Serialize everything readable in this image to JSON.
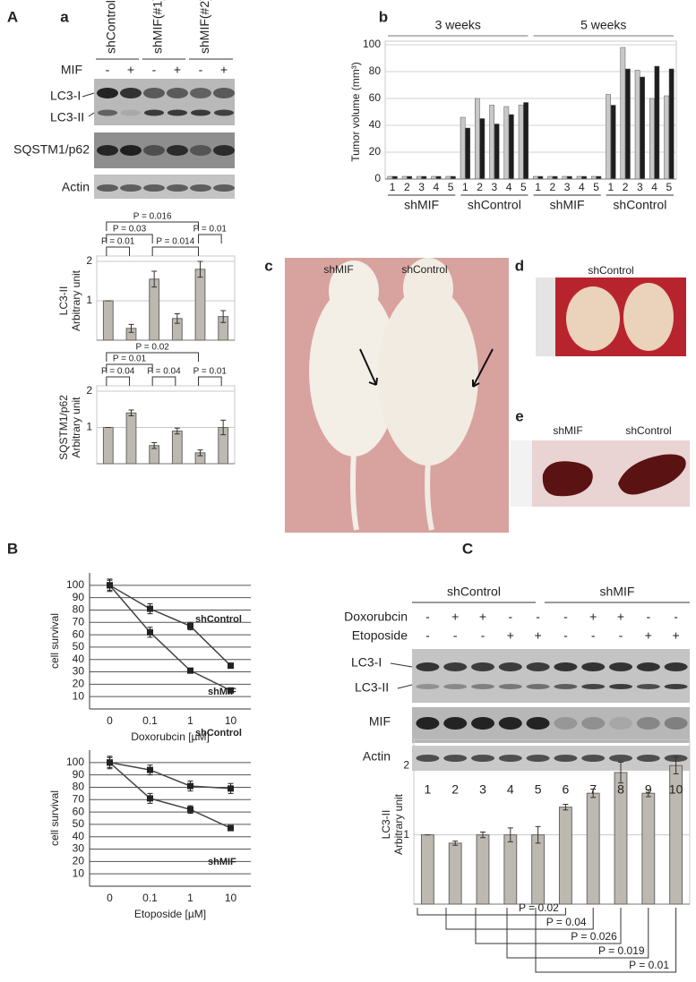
{
  "panel_labels": {
    "A": "A",
    "a": "a",
    "b": "b",
    "c": "c",
    "d": "d",
    "e": "e",
    "B": "B",
    "C": "C"
  },
  "blot_a": {
    "groups": [
      "shControl",
      "shMIF(#1)",
      "shMIF(#2)"
    ],
    "treatment": "MIF",
    "signs": [
      "-",
      "+",
      "-",
      "+",
      "-",
      "+"
    ],
    "rows": [
      "LC3-I",
      "LC3-II",
      "SQSTM1/p62",
      "Actin"
    ]
  },
  "photo_c": {
    "labels": [
      "shMIF",
      "shControl"
    ]
  },
  "photo_d": {
    "label": "shControl"
  },
  "photo_e": {
    "labels": [
      "shMIF",
      "shControl"
    ]
  },
  "blot_C": {
    "groups": [
      "shControl",
      "shMIF"
    ],
    "treatments": [
      {
        "name": "Doxorubcin",
        "signs": [
          "-",
          "+",
          "+",
          "-",
          "-",
          "-",
          "+",
          "+",
          "-",
          "-"
        ]
      },
      {
        "name": "Etoposide",
        "signs": [
          "-",
          "-",
          "-",
          "+",
          "+",
          "-",
          "-",
          "-",
          "+",
          "+"
        ]
      }
    ],
    "rows": [
      "LC3-I",
      "LC3-II",
      "MIF",
      "Actin"
    ]
  },
  "chart_data": [
    {
      "type": "bar",
      "y_label": [
        "LC3-II",
        "Arbitrary unit"
      ],
      "color": "#bdb8b0",
      "values": [
        1,
        0.3,
        1.55,
        0.55,
        1.8,
        0.6
      ],
      "errors": [
        0,
        0.1,
        0.2,
        0.12,
        0.2,
        0.15
      ],
      "ylim": [
        0,
        2
      ],
      "yticks": [
        1,
        2
      ],
      "grid": true,
      "annotations": [
        "P = 0.016",
        "P = 0.03",
        "P = 0.014",
        "P = 0.01",
        "P = 0.01"
      ]
    },
    {
      "type": "bar",
      "y_label": [
        "SQSTM1/p62",
        "Arbitrary unit"
      ],
      "color": "#bdb8b0",
      "values": [
        1,
        1.4,
        0.5,
        0.9,
        0.3,
        1.0
      ],
      "errors": [
        0,
        0.08,
        0.08,
        0.08,
        0.08,
        0.2
      ],
      "ylim": [
        0,
        2
      ],
      "yticks": [
        1,
        2
      ],
      "grid": true,
      "annotations": [
        "P = 0.02",
        "P = 0.01",
        "P = 0.04",
        "P = 0.04",
        "P = 0.01"
      ]
    },
    {
      "type": "grouped_bar",
      "y_label": "Tumor volume (mm³)",
      "periods": [
        "3 weeks",
        "5 weeks"
      ],
      "groups": [
        "shMIF",
        "shControl",
        "shMIF",
        "shControl"
      ],
      "categories": [
        "1",
        "2",
        "3",
        "4",
        "5",
        "1",
        "2",
        "3",
        "4",
        "5",
        "1",
        "2",
        "3",
        "4",
        "5",
        "1",
        "2",
        "3",
        "4",
        "5"
      ],
      "series": [
        {
          "color": "#c8c8c8",
          "values": [
            2,
            2,
            2,
            2,
            2,
            46,
            60,
            55,
            54,
            55,
            2,
            2,
            2,
            2,
            2,
            63,
            98,
            81,
            60,
            62
          ]
        },
        {
          "color": "#1e1e1e",
          "values": [
            2,
            2,
            2,
            2,
            2,
            38,
            45,
            41,
            48,
            57,
            2,
            2,
            2,
            2,
            2,
            55,
            82,
            76,
            84,
            82
          ]
        }
      ],
      "ylim": [
        0,
        100
      ],
      "yticks": [
        0,
        20,
        40,
        60,
        80,
        100
      ],
      "grid": true
    },
    {
      "type": "line",
      "x_label": "Doxorubcin [µM]",
      "y_label": "cell survival",
      "categories": [
        "0",
        "0.1",
        "1",
        "10"
      ],
      "series": [
        {
          "name": "shControl",
          "color": "#444444",
          "values": [
            100,
            81,
            67,
            35
          ],
          "errors": [
            5,
            4,
            3,
            2
          ]
        },
        {
          "name": "shMIF",
          "color": "#444444",
          "values": [
            100,
            62,
            31,
            15
          ],
          "errors": [
            4,
            4,
            2,
            2
          ]
        }
      ],
      "ylim": [
        0,
        110
      ],
      "yticks": [
        10,
        20,
        30,
        40,
        50,
        60,
        70,
        80,
        90,
        100
      ],
      "grid": true
    },
    {
      "type": "line",
      "x_label": "Etoposide [µM]",
      "y_label": "cell survival",
      "categories": [
        "0",
        "0.1",
        "1",
        "10"
      ],
      "series": [
        {
          "name": "shControl",
          "color": "#444444",
          "values": [
            100,
            94,
            81,
            79
          ],
          "errors": [
            5,
            4,
            4,
            4
          ]
        },
        {
          "name": "shMIF",
          "color": "#444444",
          "values": [
            100,
            71,
            62,
            47
          ],
          "errors": [
            4,
            4,
            3,
            2
          ]
        }
      ],
      "ylim": [
        0,
        110
      ],
      "yticks": [
        10,
        20,
        30,
        40,
        50,
        60,
        70,
        80,
        90,
        100
      ],
      "grid": true
    },
    {
      "type": "bar",
      "y_label": [
        "LC3-II",
        "Arbitrary unit"
      ],
      "color": "#bdb8b0",
      "categories": [
        "1",
        "2",
        "3",
        "4",
        "5",
        "6",
        "7",
        "8",
        "9",
        "10"
      ],
      "values": [
        1,
        0.88,
        1.0,
        1.0,
        1.0,
        1.4,
        1.6,
        1.9,
        1.6,
        2.0
      ],
      "errors": [
        0,
        0.03,
        0.04,
        0.1,
        0.12,
        0.04,
        0.06,
        0.15,
        0.05,
        0.12
      ],
      "ylim": [
        0,
        2.3
      ],
      "yticks": [
        1,
        2
      ],
      "grid": true,
      "annotations": [
        "P = 0.02",
        "P = 0.04",
        "P = 0.026",
        "P = 0.019",
        "P = 0.01"
      ]
    }
  ]
}
